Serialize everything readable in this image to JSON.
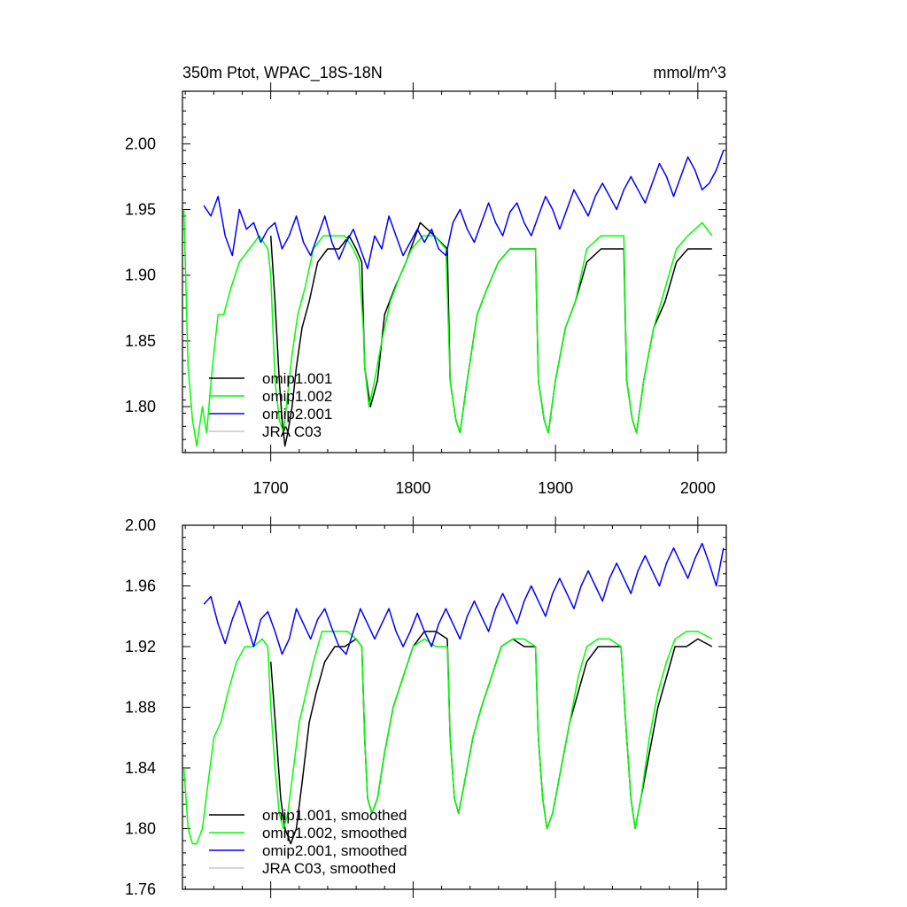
{
  "chart_data": [
    {
      "type": "line",
      "title_left": "350m Ptot, WPAC_18S-18N",
      "title_right": "mmol/m^3",
      "xlim": [
        1638,
        2020
      ],
      "ylim": [
        1.765,
        2.04
      ],
      "xticks": [
        1700,
        1800,
        1900,
        2000
      ],
      "xtick_labels": [
        "1700",
        "1800",
        "1900",
        "2000"
      ],
      "yticks": [
        1.8,
        1.85,
        1.9,
        1.95,
        2.0
      ],
      "ytick_labels": [
        "1.80",
        "1.85",
        "1.90",
        "1.95",
        "2.00"
      ],
      "legend": [
        "omip1.001",
        "omip1.002",
        "omip2.001",
        "JRA C03"
      ],
      "series": [
        {
          "name": "omip1.001",
          "color": "#000000",
          "x": [
            1700,
            1703,
            1706,
            1708,
            1710,
            1712,
            1715,
            1718,
            1722,
            1727,
            1733,
            1740,
            1748,
            1755,
            1760,
            1764,
            1766,
            1770,
            1775,
            1780,
            1787,
            1795,
            1805,
            1815,
            1824,
            1826,
            1830,
            1833,
            1838,
            1845,
            1852,
            1860,
            1868,
            1878,
            1886,
            1888,
            1892,
            1895,
            1900,
            1907,
            1914,
            1922,
            1932,
            1940,
            1948,
            1950,
            1954,
            1957,
            1962,
            1969,
            1977,
            1985,
            1993,
            2003,
            2010
          ],
          "y": [
            1.93,
            1.88,
            1.82,
            1.79,
            1.77,
            1.78,
            1.8,
            1.83,
            1.86,
            1.88,
            1.91,
            1.92,
            1.92,
            1.93,
            1.92,
            1.91,
            1.83,
            1.8,
            1.82,
            1.87,
            1.89,
            1.91,
            1.94,
            1.93,
            1.92,
            1.82,
            1.79,
            1.78,
            1.82,
            1.87,
            1.89,
            1.91,
            1.92,
            1.92,
            1.92,
            1.82,
            1.79,
            1.78,
            1.82,
            1.86,
            1.88,
            1.91,
            1.92,
            1.92,
            1.92,
            1.82,
            1.79,
            1.78,
            1.82,
            1.86,
            1.88,
            1.91,
            1.92,
            1.92,
            1.92
          ]
        },
        {
          "name": "omip1.002",
          "color": "#00ff00",
          "x": [
            1639,
            1642,
            1645,
            1648,
            1652,
            1655,
            1659,
            1663,
            1667,
            1672,
            1678,
            1685,
            1692,
            1698,
            1700,
            1703,
            1706,
            1709,
            1712,
            1715,
            1719,
            1724,
            1730,
            1737,
            1745,
            1752,
            1758,
            1762,
            1765,
            1766,
            1769,
            1773,
            1778,
            1784,
            1791,
            1799,
            1807,
            1815,
            1823,
            1826,
            1830,
            1833,
            1838,
            1845,
            1852,
            1860,
            1868,
            1878,
            1886,
            1888,
            1892,
            1895,
            1900,
            1907,
            1914,
            1922,
            1932,
            1940,
            1948,
            1950,
            1954,
            1957,
            1962,
            1969,
            1977,
            1985,
            1993,
            2003,
            2010
          ],
          "y": [
            1.95,
            1.83,
            1.79,
            1.77,
            1.8,
            1.78,
            1.83,
            1.87,
            1.87,
            1.89,
            1.91,
            1.92,
            1.93,
            1.92,
            1.9,
            1.82,
            1.79,
            1.78,
            1.81,
            1.84,
            1.87,
            1.89,
            1.92,
            1.93,
            1.93,
            1.93,
            1.92,
            1.91,
            1.86,
            1.83,
            1.8,
            1.82,
            1.85,
            1.88,
            1.9,
            1.92,
            1.93,
            1.93,
            1.92,
            1.82,
            1.79,
            1.78,
            1.82,
            1.87,
            1.89,
            1.91,
            1.92,
            1.92,
            1.92,
            1.82,
            1.79,
            1.78,
            1.82,
            1.86,
            1.88,
            1.92,
            1.93,
            1.93,
            1.93,
            1.82,
            1.79,
            1.78,
            1.82,
            1.86,
            1.89,
            1.92,
            1.93,
            1.94,
            1.93
          ]
        },
        {
          "name": "omip2.001",
          "color": "#0000ff",
          "x": [
            1653,
            1658,
            1663,
            1668,
            1673,
            1678,
            1683,
            1688,
            1693,
            1698,
            1703,
            1708,
            1713,
            1718,
            1723,
            1728,
            1733,
            1738,
            1743,
            1748,
            1753,
            1758,
            1763,
            1768,
            1773,
            1778,
            1783,
            1788,
            1793,
            1798,
            1803,
            1808,
            1813,
            1818,
            1823,
            1828,
            1833,
            1838,
            1843,
            1848,
            1853,
            1858,
            1863,
            1868,
            1873,
            1878,
            1883,
            1888,
            1893,
            1898,
            1903,
            1908,
            1913,
            1918,
            1923,
            1928,
            1933,
            1938,
            1943,
            1948,
            1953,
            1958,
            1963,
            1968,
            1973,
            1978,
            1983,
            1988,
            1993,
            1998,
            2003,
            2008,
            2013,
            2018
          ],
          "y": [
            1.953,
            1.945,
            1.96,
            1.93,
            1.915,
            1.95,
            1.935,
            1.94,
            1.925,
            1.935,
            1.94,
            1.92,
            1.93,
            1.945,
            1.925,
            1.915,
            1.93,
            1.945,
            1.925,
            1.912,
            1.925,
            1.935,
            1.92,
            1.905,
            1.93,
            1.92,
            1.945,
            1.93,
            1.915,
            1.925,
            1.935,
            1.925,
            1.935,
            1.92,
            1.915,
            1.94,
            1.95,
            1.935,
            1.925,
            1.94,
            1.955,
            1.94,
            1.93,
            1.948,
            1.955,
            1.94,
            1.93,
            1.945,
            1.96,
            1.95,
            1.935,
            1.95,
            1.965,
            1.955,
            1.945,
            1.96,
            1.97,
            1.96,
            1.95,
            1.965,
            1.975,
            1.965,
            1.955,
            1.97,
            1.985,
            1.975,
            1.96,
            1.975,
            1.99,
            1.98,
            1.965,
            1.97,
            1.98,
            1.995
          ]
        }
      ]
    },
    {
      "type": "line",
      "xlim": [
        1638,
        2020
      ],
      "ylim": [
        1.76,
        2.0
      ],
      "yticks": [
        1.76,
        1.8,
        1.84,
        1.88,
        1.92,
        1.96,
        2.0
      ],
      "ytick_labels": [
        "1.76",
        "1.80",
        "1.84",
        "1.88",
        "1.92",
        "1.96",
        "2.00"
      ],
      "legend": [
        "omip1.001, smoothed",
        "omip1.002, smoothed",
        "omip2.001, smoothed",
        "JRA C03, smoothed"
      ],
      "series": [
        {
          "name": "omip1.001, smoothed",
          "color": "#000000",
          "x": [
            1700,
            1704,
            1707,
            1710,
            1714,
            1718,
            1722,
            1727,
            1732,
            1738,
            1745,
            1752,
            1760,
            1764,
            1766,
            1768,
            1771,
            1775,
            1780,
            1786,
            1793,
            1800,
            1808,
            1816,
            1824,
            1826,
            1829,
            1832,
            1836,
            1842,
            1848,
            1855,
            1862,
            1870,
            1878,
            1886,
            1888,
            1891,
            1894,
            1898,
            1904,
            1910,
            1916,
            1922,
            1930,
            1938,
            1946,
            1950,
            1953,
            1956,
            1960,
            1966,
            1972,
            1978,
            1984,
            1992,
            2000,
            2010
          ],
          "y": [
            1.91,
            1.86,
            1.82,
            1.8,
            1.79,
            1.8,
            1.83,
            1.87,
            1.89,
            1.91,
            1.92,
            1.92,
            1.925,
            1.92,
            1.86,
            1.82,
            1.81,
            1.82,
            1.85,
            1.88,
            1.9,
            1.92,
            1.93,
            1.93,
            1.925,
            1.86,
            1.82,
            1.81,
            1.83,
            1.86,
            1.88,
            1.9,
            1.92,
            1.925,
            1.92,
            1.92,
            1.86,
            1.82,
            1.8,
            1.81,
            1.84,
            1.87,
            1.89,
            1.91,
            1.92,
            1.92,
            1.92,
            1.86,
            1.82,
            1.8,
            1.82,
            1.85,
            1.88,
            1.9,
            1.92,
            1.92,
            1.925,
            1.92
          ]
        },
        {
          "name": "omip1.002, smoothed",
          "color": "#00ff00",
          "x": [
            1639,
            1642,
            1645,
            1648,
            1652,
            1656,
            1660,
            1665,
            1670,
            1676,
            1682,
            1688,
            1694,
            1698,
            1700,
            1703,
            1706,
            1709,
            1712,
            1716,
            1720,
            1725,
            1730,
            1736,
            1742,
            1748,
            1754,
            1760,
            1764,
            1766,
            1768,
            1771,
            1775,
            1780,
            1786,
            1793,
            1800,
            1808,
            1816,
            1824,
            1826,
            1829,
            1832,
            1836,
            1842,
            1848,
            1855,
            1862,
            1870,
            1878,
            1886,
            1888,
            1891,
            1894,
            1898,
            1904,
            1910,
            1916,
            1922,
            1930,
            1938,
            1946,
            1950,
            1953,
            1956,
            1960,
            1966,
            1972,
            1978,
            1984,
            1992,
            2000,
            2010
          ],
          "y": [
            1.84,
            1.8,
            1.79,
            1.79,
            1.8,
            1.83,
            1.86,
            1.87,
            1.89,
            1.91,
            1.92,
            1.92,
            1.925,
            1.92,
            1.88,
            1.84,
            1.81,
            1.8,
            1.81,
            1.84,
            1.87,
            1.89,
            1.91,
            1.93,
            1.93,
            1.93,
            1.93,
            1.925,
            1.92,
            1.86,
            1.82,
            1.81,
            1.82,
            1.85,
            1.88,
            1.9,
            1.92,
            1.925,
            1.92,
            1.92,
            1.86,
            1.82,
            1.81,
            1.83,
            1.86,
            1.88,
            1.9,
            1.92,
            1.925,
            1.925,
            1.92,
            1.86,
            1.82,
            1.8,
            1.81,
            1.84,
            1.87,
            1.9,
            1.92,
            1.925,
            1.925,
            1.92,
            1.86,
            1.82,
            1.8,
            1.82,
            1.86,
            1.89,
            1.91,
            1.925,
            1.93,
            1.93,
            1.925
          ]
        },
        {
          "name": "omip2.001, smoothed",
          "color": "#0000ff",
          "x": [
            1653,
            1658,
            1663,
            1668,
            1673,
            1678,
            1683,
            1688,
            1693,
            1698,
            1703,
            1708,
            1713,
            1718,
            1723,
            1728,
            1733,
            1738,
            1743,
            1748,
            1753,
            1758,
            1763,
            1768,
            1773,
            1778,
            1783,
            1788,
            1793,
            1798,
            1803,
            1808,
            1813,
            1818,
            1823,
            1828,
            1833,
            1838,
            1843,
            1848,
            1853,
            1858,
            1863,
            1868,
            1873,
            1878,
            1883,
            1888,
            1893,
            1898,
            1903,
            1908,
            1913,
            1918,
            1923,
            1928,
            1933,
            1938,
            1943,
            1948,
            1953,
            1958,
            1963,
            1968,
            1973,
            1978,
            1983,
            1988,
            1993,
            1998,
            2003,
            2008,
            2013,
            2018
          ],
          "y": [
            1.948,
            1.953,
            1.935,
            1.922,
            1.938,
            1.95,
            1.935,
            1.92,
            1.938,
            1.943,
            1.93,
            1.915,
            1.925,
            1.945,
            1.935,
            1.925,
            1.938,
            1.945,
            1.932,
            1.92,
            1.915,
            1.93,
            1.945,
            1.935,
            1.925,
            1.935,
            1.945,
            1.93,
            1.92,
            1.93,
            1.942,
            1.93,
            1.92,
            1.935,
            1.945,
            1.935,
            1.925,
            1.94,
            1.95,
            1.94,
            1.93,
            1.945,
            1.955,
            1.945,
            1.935,
            1.95,
            1.96,
            1.95,
            1.94,
            1.955,
            1.965,
            1.955,
            1.945,
            1.96,
            1.97,
            1.96,
            1.95,
            1.965,
            1.975,
            1.965,
            1.955,
            1.97,
            1.98,
            1.97,
            1.96,
            1.975,
            1.985,
            1.975,
            1.965,
            1.978,
            1.988,
            1.975,
            1.96,
            1.985
          ]
        }
      ]
    }
  ]
}
